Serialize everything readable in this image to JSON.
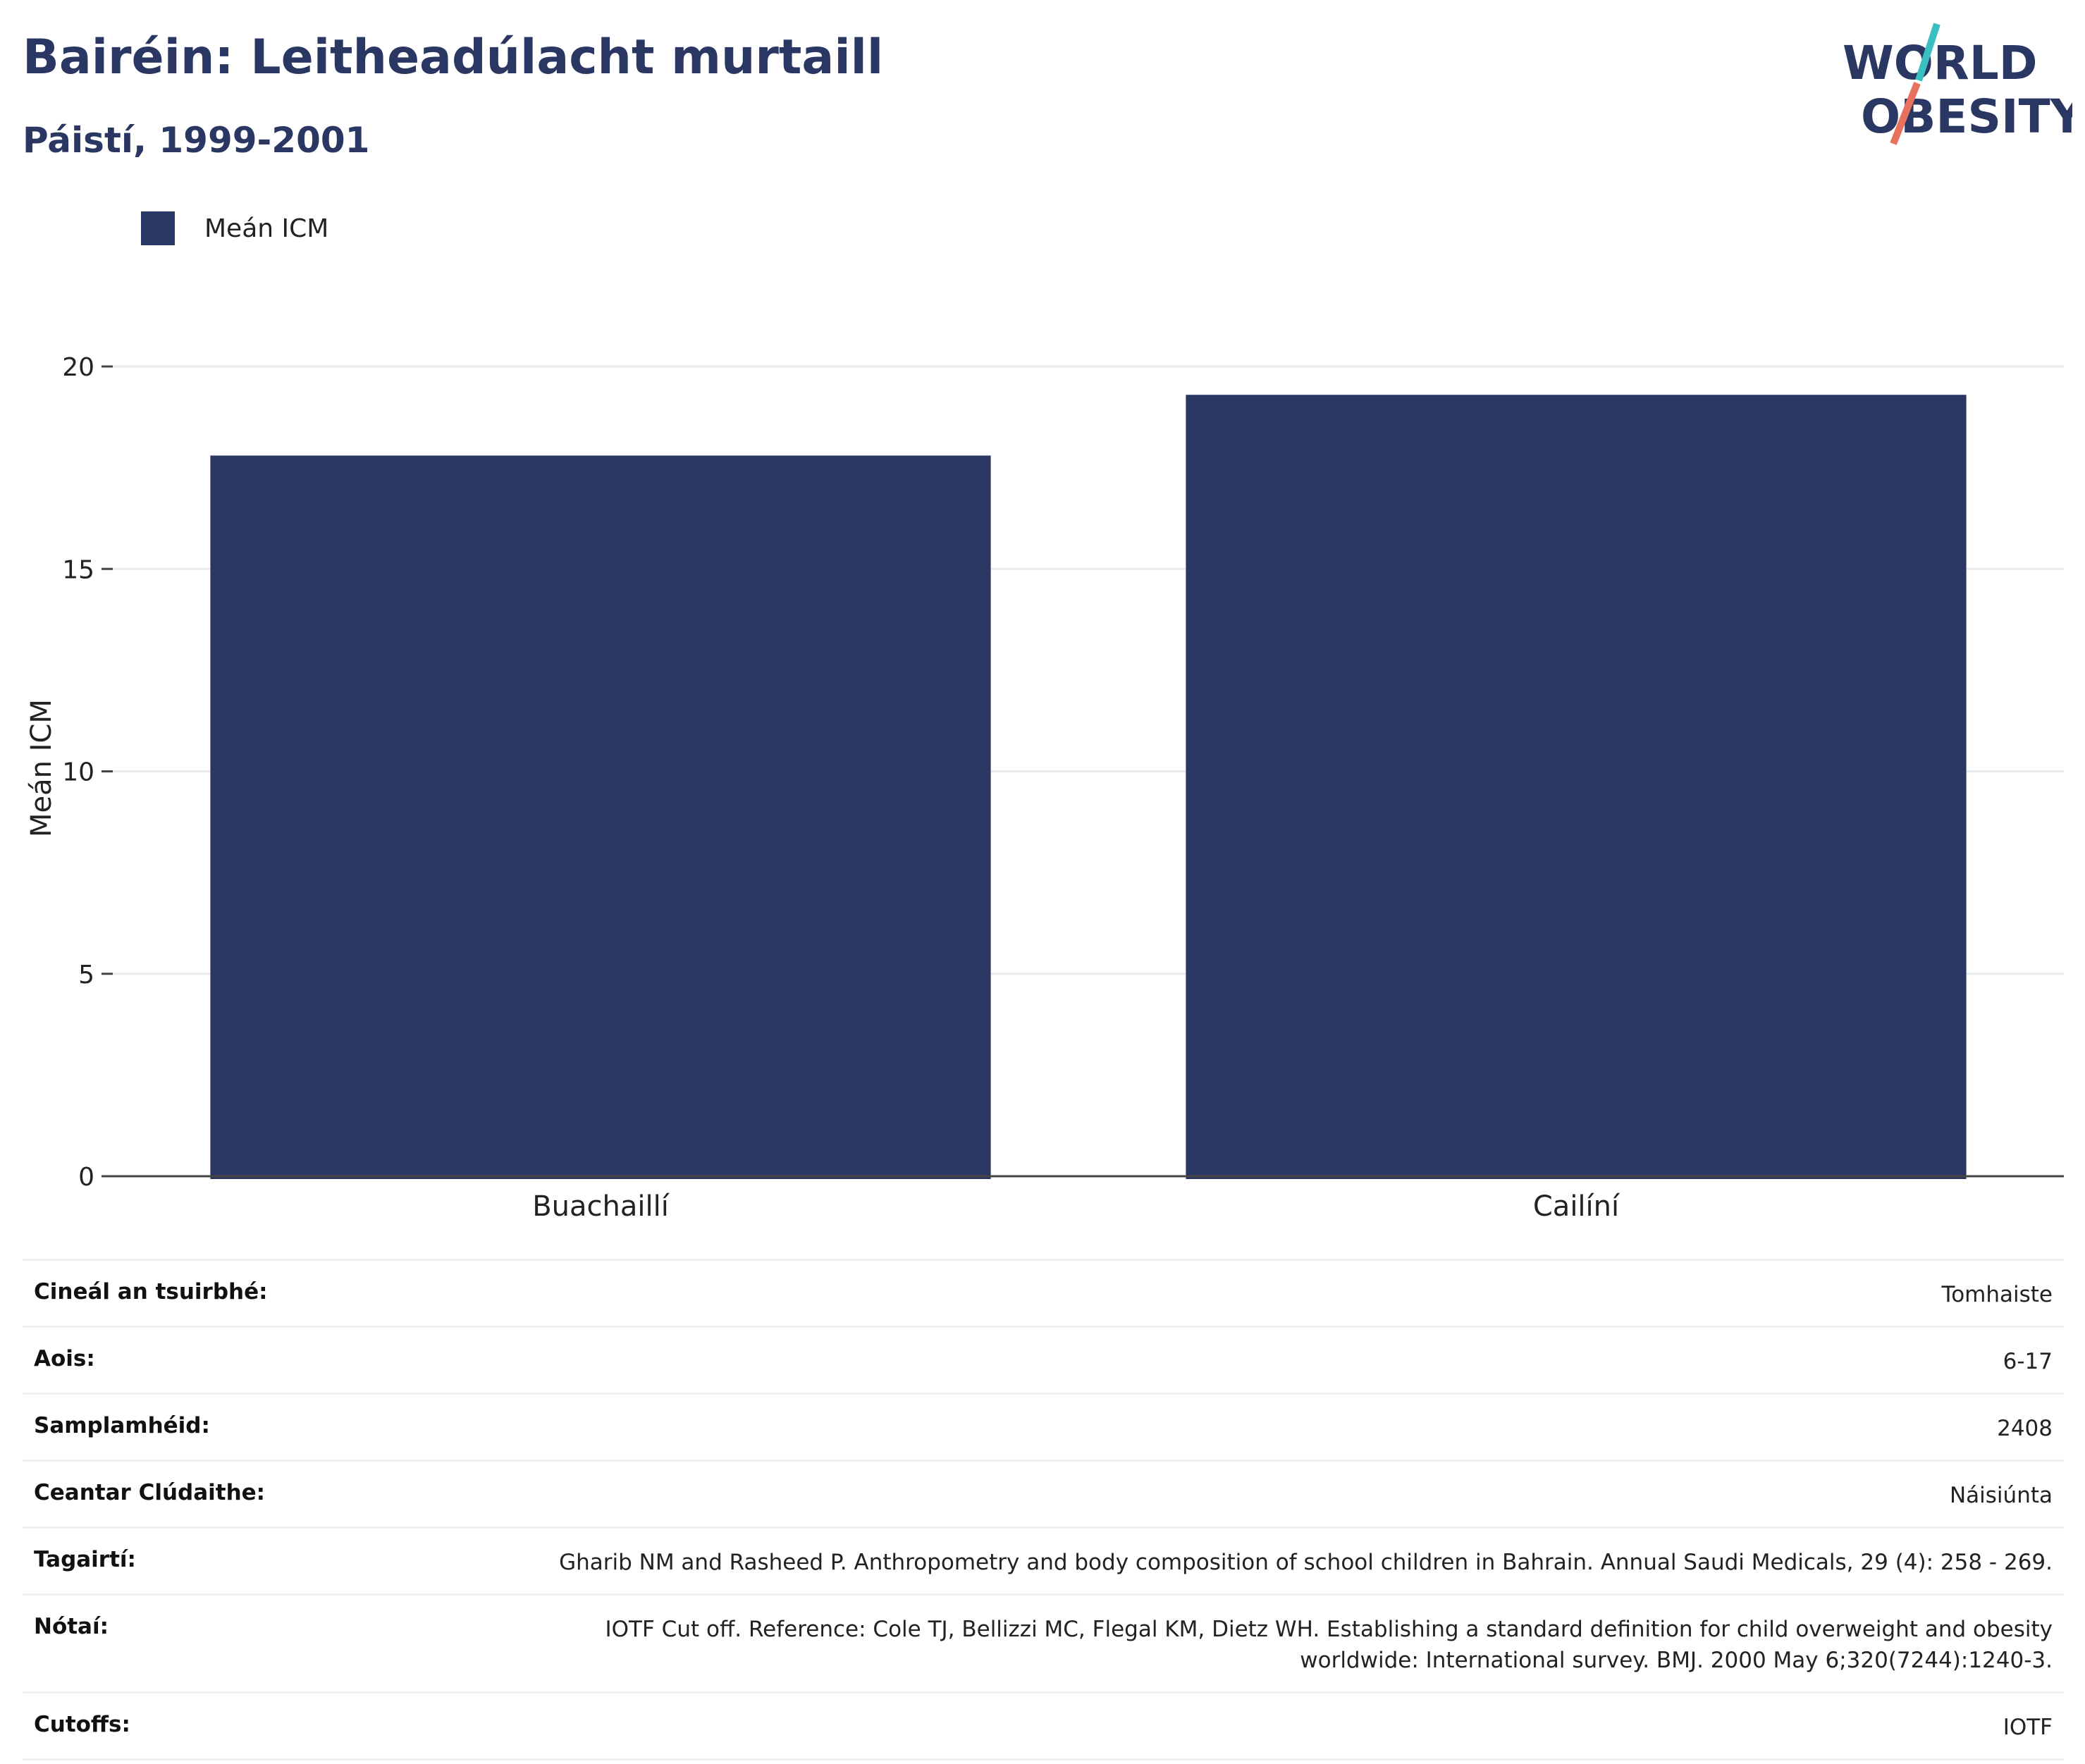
{
  "header": {
    "title": "Bairéin: Leitheadúlacht murtaill",
    "subtitle": "Páistí, 1999-2001"
  },
  "logo": {
    "line1": "WORLD",
    "line2": "OBESITY",
    "colors": {
      "text": "#2b3763",
      "slash_top": "#3bbfc0",
      "slash_bottom": "#e8705f"
    }
  },
  "chart_data": {
    "type": "bar",
    "categories": [
      "Buachaillí",
      "Cailíní"
    ],
    "series": [
      {
        "name": "Meán ICM",
        "values": [
          17.8,
          19.3
        ],
        "color": "#2b3763"
      }
    ],
    "title": "Bairéin: Leitheadúlacht murtaill",
    "subtitle": "Páistí, 1999-2001",
    "xlabel": "",
    "ylabel": "Meán ICM",
    "ylim": [
      0,
      20
    ],
    "yticks": [
      0,
      5,
      10,
      15,
      20
    ],
    "grid": true,
    "legend_placement": "top-left"
  },
  "meta": {
    "rows": [
      {
        "label": "Cineál an tsuirbhé:",
        "value": "Tomhaiste"
      },
      {
        "label": "Aois:",
        "value": "6-17"
      },
      {
        "label": "Samplamhéid:",
        "value": "2408"
      },
      {
        "label": "Ceantar Clúdaithe:",
        "value": "Náisiúnta"
      },
      {
        "label": "Tagairtí:",
        "value": "Gharib NM and Rasheed P. Anthropometry and body composition of school children in Bahrain. Annual Saudi Medicals, 29 (4): 258 - 269."
      },
      {
        "label": "Nótaí:",
        "value": "IOTF Cut off. Reference: Cole TJ, Bellizzi MC, Flegal KM, Dietz WH. Establishing a standard definition for child overweight and obesity worldwide: International survey. BMJ. 2000 May 6;320(7244):1240-3."
      },
      {
        "label": "Cutoffs:",
        "value": "IOTF"
      }
    ]
  }
}
